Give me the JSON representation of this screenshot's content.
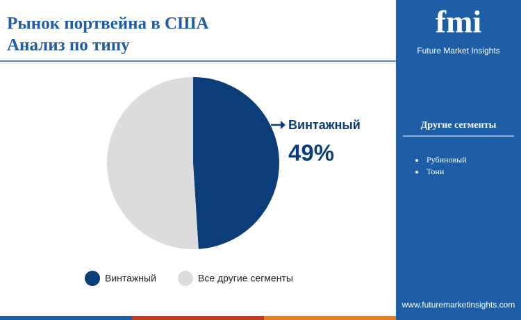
{
  "chart_data": {
    "type": "pie",
    "title": "Рынок портвейна в США",
    "subtitle": "Анализ по типу",
    "categories": [
      "Винтажный",
      "Все другие сегменты"
    ],
    "values": [
      49,
      51
    ],
    "value_labels": [
      "49%",
      null
    ],
    "colors": [
      "#0b3d7a",
      "#dcdcdc"
    ]
  },
  "sidebar": {
    "logo": "fmi",
    "brand": "Future Market Insights",
    "heading": "Другие сегменты",
    "items": [
      "Рубиновый",
      "Тони"
    ],
    "url": "www.futuremarketinsights.com"
  }
}
